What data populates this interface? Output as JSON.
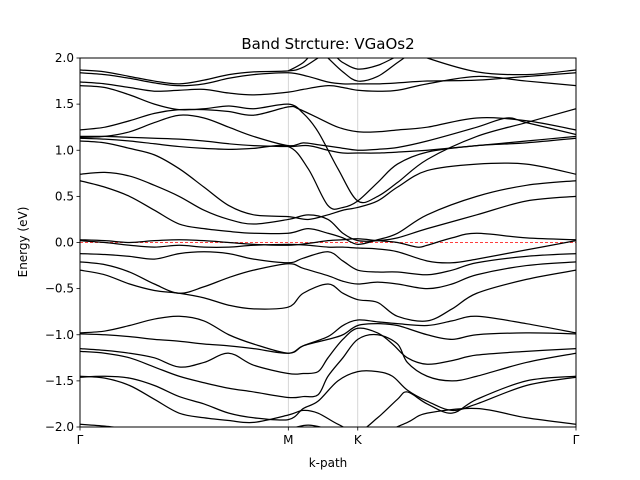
{
  "chart_data": {
    "type": "line",
    "title": "Band Strcture: VGaOs2",
    "xlabel": "k-path",
    "ylabel": "Energy (eV)",
    "xlim": [
      0,
      1
    ],
    "ylim": [
      -2.0,
      2.0
    ],
    "yticks": [
      -2.0,
      -1.5,
      -1.0,
      -0.5,
      0.0,
      0.5,
      1.0,
      1.5,
      2.0
    ],
    "ytick_labels": [
      "−2.0",
      "−1.5",
      "−1.0",
      "−0.5",
      "0.0",
      "0.5",
      "1.0",
      "1.5",
      "2.0"
    ],
    "kpoints": [
      {
        "label": "Γ",
        "x": 0.0
      },
      {
        "label": "M",
        "x": 0.42
      },
      {
        "label": "K",
        "x": 0.56
      },
      {
        "label": "Γ",
        "x": 1.0
      }
    ],
    "fermi_level": 0.0,
    "colors": {
      "bands": "#000000",
      "fermi": "#ff0000",
      "kline": "#cccccc"
    },
    "series": [
      {
        "x": [
          0,
          0.05,
          0.1,
          0.2,
          0.3,
          0.35,
          0.42,
          0.46,
          0.5,
          0.53,
          0.56,
          0.6,
          0.66,
          0.7,
          0.8,
          0.9,
          1.0
        ],
        "y": [
          -1.97,
          -1.99,
          -2.02,
          -2.06,
          -2.08,
          -2.08,
          -2.02,
          -1.98,
          -2.02,
          -2.06,
          -2.1,
          -2.08,
          -1.95,
          -1.85,
          -1.8,
          -1.9,
          -1.97
        ]
      },
      {
        "x": [
          0,
          0.05,
          0.1,
          0.15,
          0.2,
          0.25,
          0.3,
          0.35,
          0.42,
          0.45,
          0.48,
          0.52,
          0.56,
          0.6,
          0.64,
          0.66,
          0.7,
          0.75,
          0.8,
          0.9,
          1.0
        ],
        "y": [
          -1.45,
          -1.47,
          -1.55,
          -1.7,
          -1.85,
          -1.9,
          -1.93,
          -1.95,
          -1.87,
          -1.82,
          -1.85,
          -1.97,
          -2.05,
          -1.9,
          -1.7,
          -1.62,
          -1.75,
          -1.85,
          -1.7,
          -1.5,
          -1.45
        ]
      },
      {
        "x": [
          0,
          0.05,
          0.1,
          0.15,
          0.2,
          0.25,
          0.3,
          0.35,
          0.42,
          0.45,
          0.48,
          0.52,
          0.56,
          0.6,
          0.63,
          0.66,
          0.7,
          0.75,
          0.8,
          0.9,
          1.0
        ],
        "y": [
          -1.46,
          -1.45,
          -1.47,
          -1.55,
          -1.67,
          -1.75,
          -1.85,
          -1.9,
          -1.92,
          -1.8,
          -1.72,
          -1.5,
          -1.4,
          -1.4,
          -1.45,
          -1.6,
          -1.72,
          -1.82,
          -1.75,
          -1.55,
          -1.46
        ]
      },
      {
        "x": [
          0,
          0.05,
          0.1,
          0.15,
          0.2,
          0.25,
          0.3,
          0.35,
          0.42,
          0.45,
          0.48,
          0.5,
          0.53,
          0.56,
          0.6,
          0.64,
          0.66,
          0.7,
          0.75,
          0.8,
          0.9,
          1.0
        ],
        "y": [
          -1.18,
          -1.2,
          -1.25,
          -1.35,
          -1.45,
          -1.52,
          -1.58,
          -1.62,
          -1.68,
          -1.67,
          -1.65,
          -1.45,
          -1.25,
          -1.05,
          -1.0,
          -1.1,
          -1.3,
          -1.45,
          -1.5,
          -1.45,
          -1.3,
          -1.2
        ]
      },
      {
        "x": [
          0,
          0.05,
          0.1,
          0.15,
          0.2,
          0.25,
          0.3,
          0.35,
          0.42,
          0.45,
          0.48,
          0.5,
          0.53,
          0.56,
          0.6,
          0.63,
          0.66,
          0.7,
          0.75,
          0.8,
          0.9,
          1.0
        ],
        "y": [
          -1.15,
          -1.17,
          -1.2,
          -1.25,
          -1.35,
          -1.3,
          -1.2,
          -1.33,
          -1.42,
          -1.42,
          -1.4,
          -1.25,
          -1.05,
          -0.93,
          -0.98,
          -1.1,
          -1.25,
          -1.32,
          -1.28,
          -1.22,
          -1.18,
          -1.15
        ]
      },
      {
        "x": [
          0,
          0.05,
          0.1,
          0.15,
          0.2,
          0.25,
          0.3,
          0.35,
          0.42,
          0.45,
          0.5,
          0.53,
          0.56,
          0.6,
          0.64,
          0.7,
          0.75,
          0.8,
          0.9,
          1.0
        ],
        "y": [
          -0.99,
          -1.0,
          -1.02,
          -1.05,
          -1.07,
          -1.1,
          -1.12,
          -1.15,
          -1.2,
          -1.12,
          -1.05,
          -1.0,
          -0.9,
          -0.88,
          -0.9,
          -1.0,
          -1.05,
          -1.0,
          -0.98,
          -0.99
        ]
      },
      {
        "x": [
          0,
          0.05,
          0.1,
          0.15,
          0.2,
          0.25,
          0.3,
          0.35,
          0.42,
          0.45,
          0.5,
          0.53,
          0.56,
          0.6,
          0.64,
          0.7,
          0.75,
          0.8,
          0.9,
          1.0
        ],
        "y": [
          -0.98,
          -0.96,
          -0.9,
          -0.83,
          -0.8,
          -0.85,
          -1.0,
          -1.1,
          -1.2,
          -1.12,
          -1.02,
          -0.9,
          -0.84,
          -0.86,
          -0.88,
          -0.9,
          -0.85,
          -0.8,
          -0.88,
          -0.98
        ]
      },
      {
        "x": [
          0,
          0.05,
          0.1,
          0.15,
          0.2,
          0.25,
          0.3,
          0.35,
          0.42,
          0.45,
          0.5,
          0.53,
          0.56,
          0.6,
          0.64,
          0.7,
          0.75,
          0.8,
          0.9,
          1.0
        ],
        "y": [
          -0.3,
          -0.35,
          -0.45,
          -0.52,
          -0.55,
          -0.6,
          -0.68,
          -0.72,
          -0.7,
          -0.55,
          -0.45,
          -0.55,
          -0.62,
          -0.65,
          -0.8,
          -0.85,
          -0.72,
          -0.55,
          -0.4,
          -0.3
        ]
      },
      {
        "x": [
          0,
          0.05,
          0.1,
          0.15,
          0.2,
          0.25,
          0.3,
          0.35,
          0.42,
          0.45,
          0.5,
          0.53,
          0.56,
          0.6,
          0.64,
          0.7,
          0.75,
          0.8,
          0.9,
          1.0
        ],
        "y": [
          -0.21,
          -0.24,
          -0.32,
          -0.45,
          -0.55,
          -0.48,
          -0.38,
          -0.3,
          -0.23,
          -0.28,
          -0.36,
          -0.42,
          -0.45,
          -0.43,
          -0.45,
          -0.5,
          -0.45,
          -0.35,
          -0.25,
          -0.21
        ]
      },
      {
        "x": [
          0,
          0.05,
          0.1,
          0.15,
          0.2,
          0.25,
          0.3,
          0.35,
          0.42,
          0.45,
          0.5,
          0.53,
          0.56,
          0.6,
          0.64,
          0.7,
          0.75,
          0.8,
          0.9,
          1.0
        ],
        "y": [
          -0.12,
          -0.13,
          -0.15,
          -0.18,
          -0.12,
          -0.1,
          -0.12,
          -0.18,
          -0.22,
          -0.17,
          -0.1,
          -0.2,
          -0.3,
          -0.32,
          -0.32,
          -0.35,
          -0.3,
          -0.22,
          -0.15,
          -0.12
        ]
      },
      {
        "x": [
          0,
          0.05,
          0.1,
          0.15,
          0.2,
          0.25,
          0.3,
          0.35,
          0.42,
          0.46,
          0.5,
          0.53,
          0.56,
          0.6,
          0.64,
          0.7,
          0.75,
          0.8,
          0.9,
          1.0
        ],
        "y": [
          0.02,
          0.0,
          -0.03,
          -0.05,
          -0.03,
          -0.05,
          -0.05,
          -0.03,
          -0.02,
          -0.03,
          -0.05,
          -0.05,
          -0.06,
          -0.07,
          -0.1,
          -0.2,
          -0.22,
          -0.18,
          -0.08,
          0.02
        ]
      },
      {
        "x": [
          0,
          0.05,
          0.1,
          0.15,
          0.2,
          0.25,
          0.3,
          0.35,
          0.42,
          0.46,
          0.5,
          0.53,
          0.56,
          0.6,
          0.64,
          0.68,
          0.7,
          0.75,
          0.8,
          0.9,
          1.0
        ],
        "y": [
          0.03,
          0.02,
          0.0,
          0.02,
          0.03,
          0.02,
          0.0,
          -0.02,
          -0.03,
          -0.01,
          0.02,
          0.03,
          0.04,
          0.02,
          0.0,
          -0.05,
          -0.03,
          0.05,
          0.1,
          0.05,
          0.03
        ]
      },
      {
        "x": [
          0,
          0.05,
          0.1,
          0.15,
          0.2,
          0.25,
          0.3,
          0.35,
          0.42,
          0.46,
          0.5,
          0.53,
          0.56,
          0.6,
          0.64,
          0.7,
          0.8,
          0.9,
          1.0
        ],
        "y": [
          0.67,
          0.6,
          0.5,
          0.35,
          0.2,
          0.15,
          0.12,
          0.1,
          0.1,
          0.15,
          0.1,
          0.05,
          -0.02,
          0.03,
          0.1,
          0.3,
          0.5,
          0.62,
          0.67
        ]
      },
      {
        "x": [
          0,
          0.05,
          0.1,
          0.15,
          0.2,
          0.25,
          0.3,
          0.35,
          0.42,
          0.46,
          0.5,
          0.53,
          0.56,
          0.6,
          0.64,
          0.7,
          0.8,
          0.9,
          1.0
        ],
        "y": [
          0.74,
          0.76,
          0.72,
          0.62,
          0.5,
          0.35,
          0.25,
          0.2,
          0.25,
          0.3,
          0.25,
          0.1,
          0.02,
          0.02,
          0.05,
          0.15,
          0.3,
          0.45,
          0.5
        ]
      },
      {
        "x": [
          0,
          0.05,
          0.1,
          0.15,
          0.2,
          0.25,
          0.3,
          0.35,
          0.42,
          0.46,
          0.5,
          0.53,
          0.56,
          0.6,
          0.64,
          0.7,
          0.8,
          0.9,
          1.0
        ],
        "y": [
          1.1,
          1.08,
          1.02,
          0.95,
          0.8,
          0.6,
          0.4,
          0.3,
          0.28,
          0.25,
          0.3,
          0.35,
          0.38,
          0.45,
          0.6,
          0.78,
          0.85,
          0.85,
          0.74
        ]
      },
      {
        "x": [
          0,
          0.05,
          0.1,
          0.15,
          0.2,
          0.25,
          0.3,
          0.35,
          0.42,
          0.46,
          0.5,
          0.53,
          0.56,
          0.6,
          0.64,
          0.7,
          0.8,
          0.9,
          1.0
        ],
        "y": [
          1.13,
          1.12,
          1.1,
          1.07,
          1.04,
          1.02,
          1.01,
          1.02,
          1.04,
          0.8,
          0.4,
          0.38,
          0.45,
          0.65,
          0.85,
          0.98,
          1.05,
          1.08,
          1.13
        ]
      },
      {
        "x": [
          0,
          0.05,
          0.1,
          0.15,
          0.2,
          0.25,
          0.3,
          0.35,
          0.42,
          0.46,
          0.5,
          0.53,
          0.56,
          0.6,
          0.64,
          0.7,
          0.8,
          0.9,
          1.0
        ],
        "y": [
          1.15,
          1.15,
          1.14,
          1.13,
          1.12,
          1.1,
          1.07,
          1.05,
          1.04,
          1.05,
          1.0,
          0.97,
          0.97,
          0.97,
          0.98,
          1.0,
          1.05,
          1.1,
          1.15
        ]
      },
      {
        "x": [
          0,
          0.05,
          0.1,
          0.15,
          0.2,
          0.25,
          0.3,
          0.35,
          0.42,
          0.45,
          0.48,
          0.52,
          0.56,
          0.6,
          0.64,
          0.7,
          0.8,
          0.86,
          0.9,
          1.0
        ],
        "y": [
          1.14,
          1.15,
          1.2,
          1.3,
          1.38,
          1.35,
          1.25,
          1.15,
          1.05,
          1.08,
          1.06,
          1.03,
          1.0,
          1.01,
          1.03,
          1.1,
          1.25,
          1.35,
          1.3,
          1.17
        ]
      },
      {
        "x": [
          0,
          0.05,
          0.1,
          0.15,
          0.2,
          0.25,
          0.3,
          0.35,
          0.42,
          0.44,
          0.48,
          0.52,
          0.56,
          0.6,
          0.64,
          0.7,
          0.8,
          0.9,
          1.0
        ],
        "y": [
          1.22,
          1.25,
          1.32,
          1.4,
          1.44,
          1.44,
          1.42,
          1.38,
          1.47,
          1.45,
          1.35,
          1.25,
          1.2,
          1.2,
          1.22,
          1.25,
          1.35,
          1.32,
          1.22
        ]
      },
      {
        "x": [
          0,
          0.05,
          0.1,
          0.15,
          0.2,
          0.25,
          0.3,
          0.35,
          0.42,
          0.45,
          0.48,
          0.52,
          0.56,
          0.6,
          0.64,
          0.7,
          0.8,
          0.9,
          1.0
        ],
        "y": [
          1.7,
          1.68,
          1.6,
          1.5,
          1.44,
          1.45,
          1.48,
          1.45,
          1.5,
          1.4,
          1.2,
          0.8,
          0.45,
          0.5,
          0.65,
          0.9,
          1.15,
          1.3,
          1.45
        ]
      },
      {
        "x": [
          0,
          0.05,
          0.1,
          0.15,
          0.2,
          0.25,
          0.3,
          0.35,
          0.42,
          0.45,
          0.5,
          0.53,
          0.56,
          0.6,
          0.64,
          0.7,
          0.8,
          0.9,
          1.0
        ],
        "y": [
          1.74,
          1.72,
          1.68,
          1.64,
          1.65,
          1.66,
          1.62,
          1.6,
          1.63,
          1.66,
          1.7,
          1.68,
          1.65,
          1.64,
          1.65,
          1.72,
          1.8,
          1.75,
          1.7
        ]
      },
      {
        "x": [
          0,
          0.05,
          0.1,
          0.15,
          0.2,
          0.25,
          0.3,
          0.35,
          0.42,
          0.46,
          0.5,
          0.53,
          0.56,
          0.6,
          0.64,
          0.7,
          0.8,
          0.9,
          1.0
        ],
        "y": [
          1.84,
          1.82,
          1.78,
          1.73,
          1.7,
          1.72,
          1.78,
          1.82,
          1.84,
          1.8,
          1.74,
          1.72,
          1.72,
          1.72,
          1.73,
          1.75,
          1.76,
          1.8,
          1.84
        ]
      },
      {
        "x": [
          0,
          0.05,
          0.1,
          0.15,
          0.2,
          0.25,
          0.3,
          0.35,
          0.42,
          0.45,
          0.5,
          0.53,
          0.56,
          0.6,
          0.64,
          0.67,
          0.7,
          0.8,
          0.9,
          1.0
        ],
        "y": [
          1.87,
          1.85,
          1.8,
          1.75,
          1.72,
          1.76,
          1.82,
          1.85,
          1.86,
          1.9,
          2.05,
          1.95,
          1.88,
          1.92,
          2.02,
          2.08,
          2.0,
          1.85,
          1.82,
          1.87
        ]
      },
      {
        "x": [
          0.42,
          0.45,
          0.48,
          0.5,
          0.53,
          0.56,
          0.6,
          0.64,
          0.68
        ],
        "y": [
          1.86,
          1.95,
          2.1,
          2.0,
          1.85,
          1.75,
          1.8,
          1.95,
          2.1
        ]
      }
    ]
  }
}
